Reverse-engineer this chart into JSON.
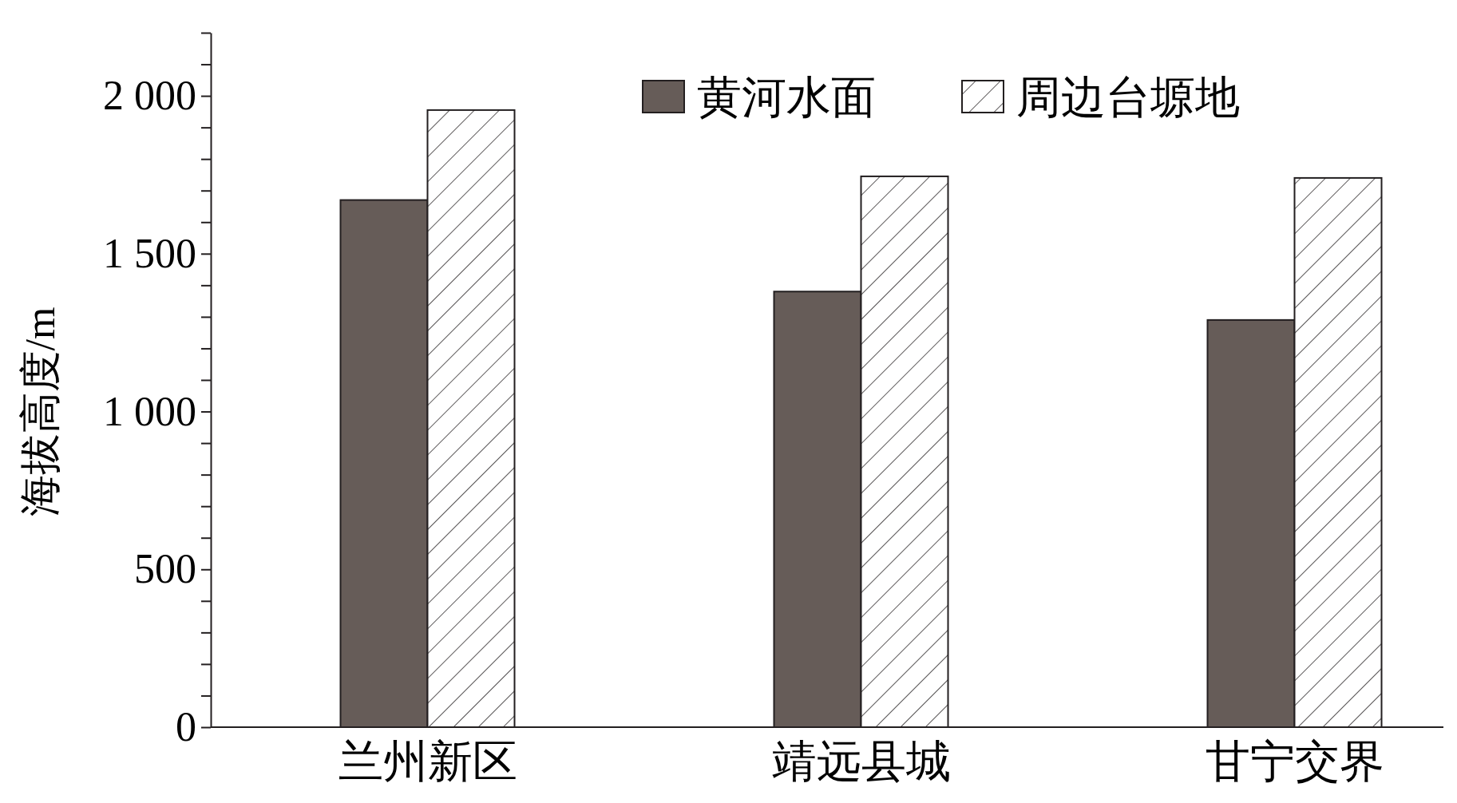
{
  "chart_data": {
    "type": "bar",
    "ylabel": "海拔高度/m",
    "categories": [
      "兰州新区",
      "靖远县城",
      "甘宁交界"
    ],
    "series": [
      {
        "name": "黄河水面",
        "color": "#665c58",
        "values": [
          1670,
          1380,
          1290
        ]
      },
      {
        "name": "周边台塬地",
        "color": "#231f20",
        "values": [
          1955,
          1745,
          1740
        ]
      }
    ],
    "ylim": [
      0,
      2200
    ],
    "yticks": [
      {
        "value": 0,
        "label": "0"
      },
      {
        "value": 100,
        "label": null
      },
      {
        "value": 200,
        "label": null
      },
      {
        "value": 300,
        "label": null
      },
      {
        "value": 400,
        "label": null
      },
      {
        "value": 500,
        "label": "500"
      },
      {
        "value": 600,
        "label": null
      },
      {
        "value": 700,
        "label": null
      },
      {
        "value": 800,
        "label": null
      },
      {
        "value": 900,
        "label": null
      },
      {
        "value": 1000,
        "label": "1 000"
      },
      {
        "value": 1100,
        "label": null
      },
      {
        "value": 1200,
        "label": null
      },
      {
        "value": 1300,
        "label": null
      },
      {
        "value": 1400,
        "label": null
      },
      {
        "value": 1500,
        "label": "1 500"
      },
      {
        "value": 1600,
        "label": null
      },
      {
        "value": 1700,
        "label": null
      },
      {
        "value": 1800,
        "label": null
      },
      {
        "value": 1900,
        "label": null
      },
      {
        "value": 2000,
        "label": "2 000"
      },
      {
        "value": 2100,
        "label": null
      },
      {
        "value": 2200,
        "label": null
      }
    ],
    "legend": "top right",
    "grid": false
  }
}
